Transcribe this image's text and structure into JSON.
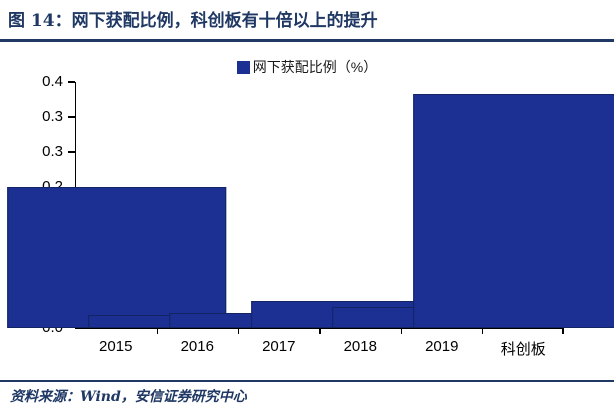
{
  "header": {
    "figure_label": "图 14：",
    "title": "网下获配比例，科创板有十倍以上的提升"
  },
  "footer": {
    "source": "资料来源：Wind，安信证券研究中心"
  },
  "colors": {
    "navy_accent": "#1F3864",
    "bar_fill": "#1C2F92",
    "axis": "#000000"
  },
  "chart_data": {
    "type": "bar",
    "title": "",
    "legend": "网下获配比例（%）",
    "legend_position": "top-center",
    "grid": false,
    "categories": [
      "2015",
      "2016",
      "2017",
      "2018",
      "2019",
      "科创板"
    ],
    "values": [
      0.2,
      0.018,
      0.021,
      0.039,
      0.03,
      0.333
    ],
    "xlabel": "",
    "ylabel": "",
    "ylim": [
      0,
      0.35
    ],
    "yticks": [
      {
        "value": 0.0,
        "label": "0.0"
      },
      {
        "value": 0.05,
        "label": "0.1"
      },
      {
        "value": 0.1,
        "label": "0.1"
      },
      {
        "value": 0.15,
        "label": "0.2"
      },
      {
        "value": 0.2,
        "label": "0.2"
      },
      {
        "value": 0.25,
        "label": "0.3"
      },
      {
        "value": 0.3,
        "label": "0.3"
      },
      {
        "value": 0.35,
        "label": "0.4"
      }
    ]
  }
}
